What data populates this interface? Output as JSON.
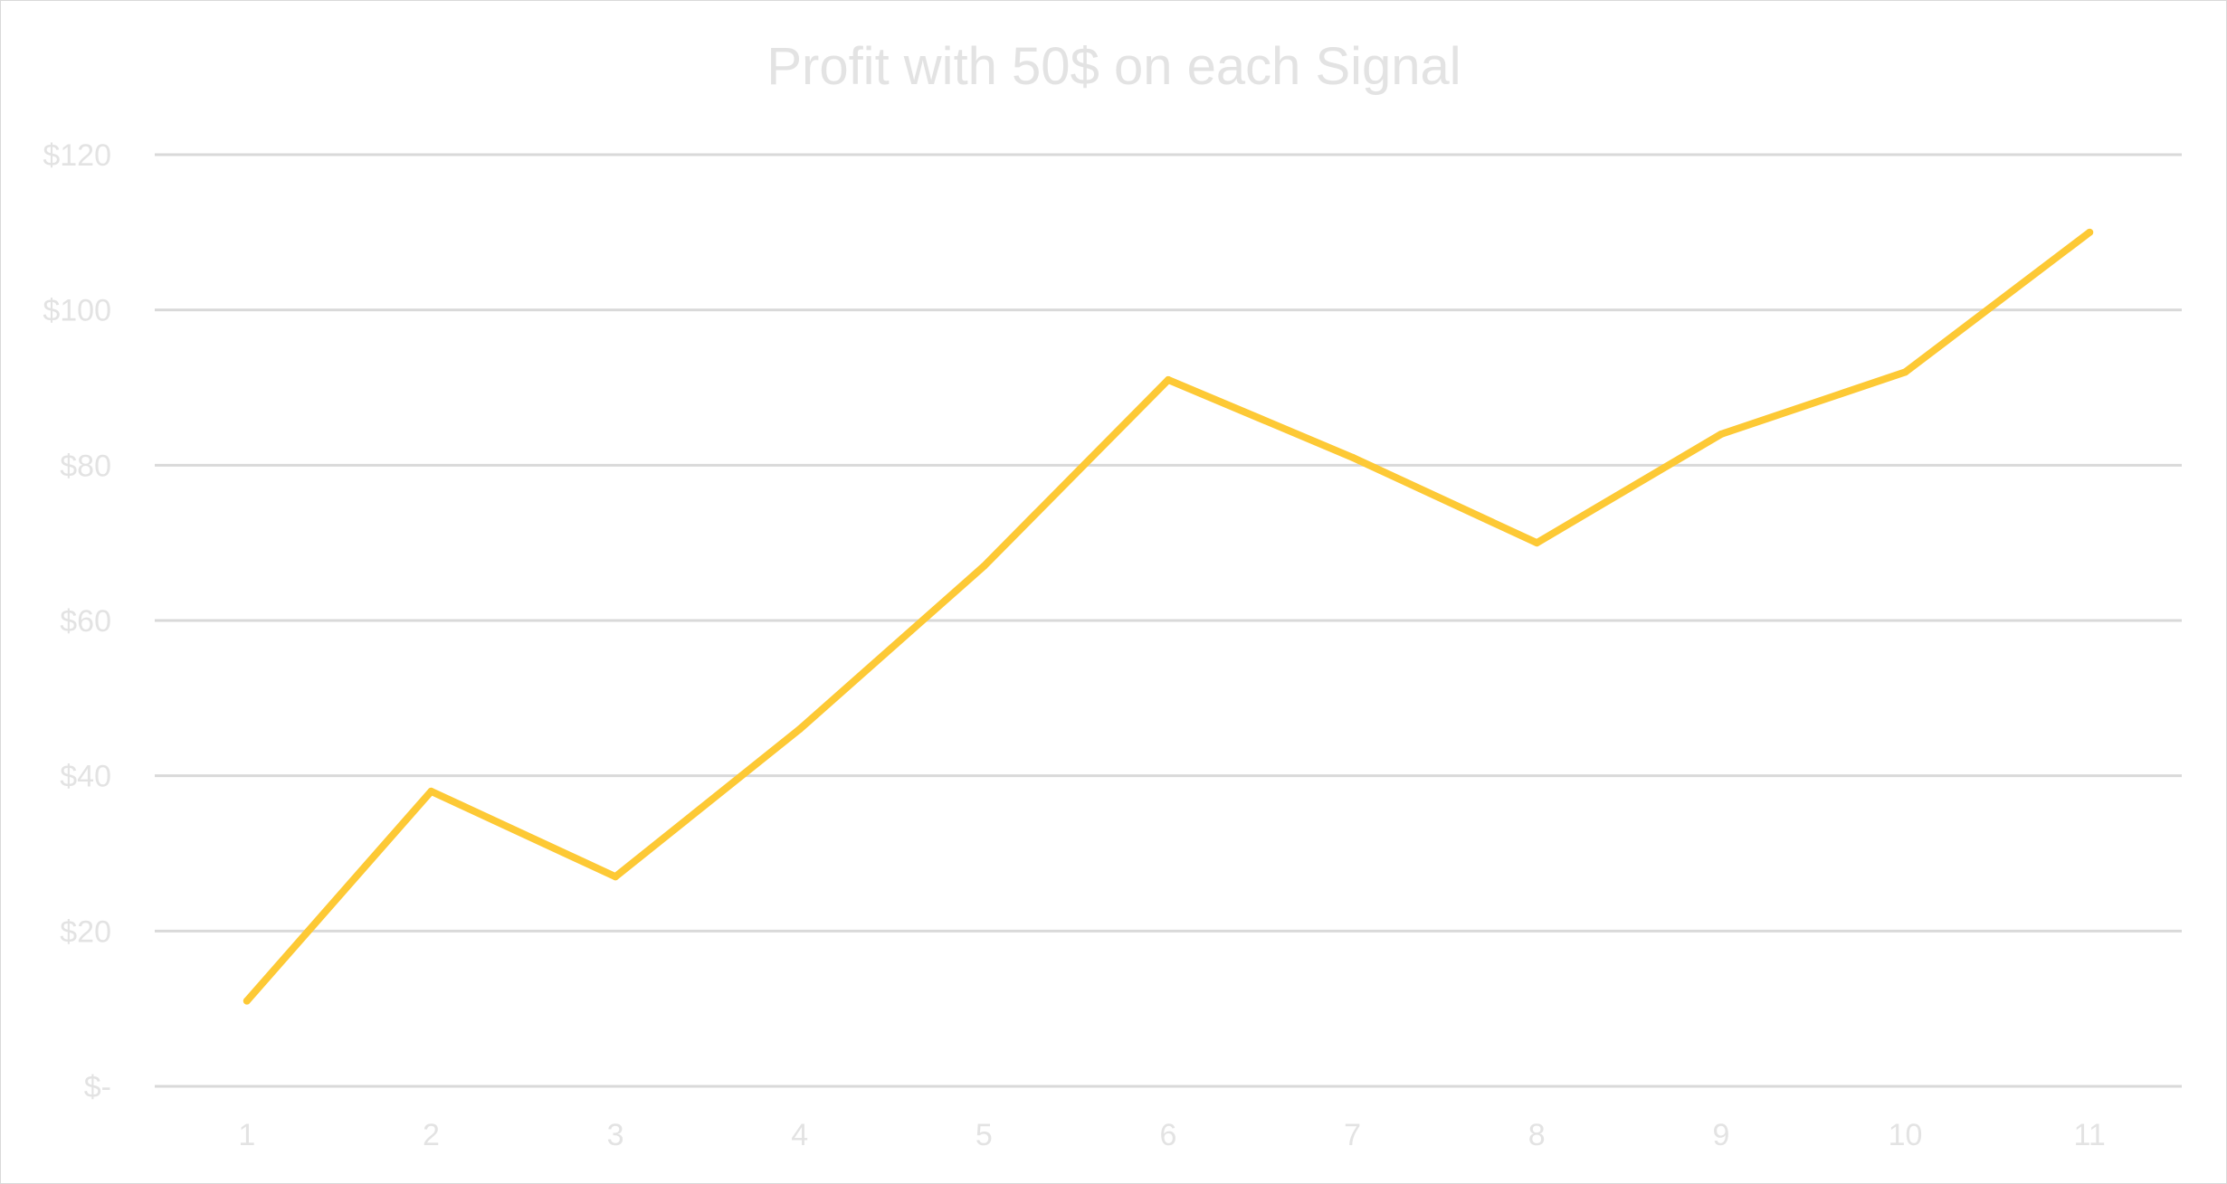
{
  "chart_data": {
    "type": "line",
    "title": "Profit with 50$ on each Signal",
    "xlabel": "",
    "ylabel": "",
    "categories": [
      "1",
      "2",
      "3",
      "4",
      "5",
      "6",
      "7",
      "8",
      "9",
      "10",
      "11"
    ],
    "series": [
      {
        "values": [
          11,
          38,
          27,
          46,
          67,
          91,
          81,
          70,
          84,
          92,
          110
        ],
        "color": "#fdc935"
      }
    ],
    "ylim": [
      0,
      120
    ],
    "y_ticks": [
      {
        "value": 0,
        "label": "$-"
      },
      {
        "value": 20,
        "label": "$20"
      },
      {
        "value": 40,
        "label": "$40"
      },
      {
        "value": 60,
        "label": "$60"
      },
      {
        "value": 80,
        "label": "$80"
      },
      {
        "value": 100,
        "label": "$100"
      },
      {
        "value": 120,
        "label": "$120"
      }
    ],
    "grid": "horizontal",
    "legend": "none"
  }
}
